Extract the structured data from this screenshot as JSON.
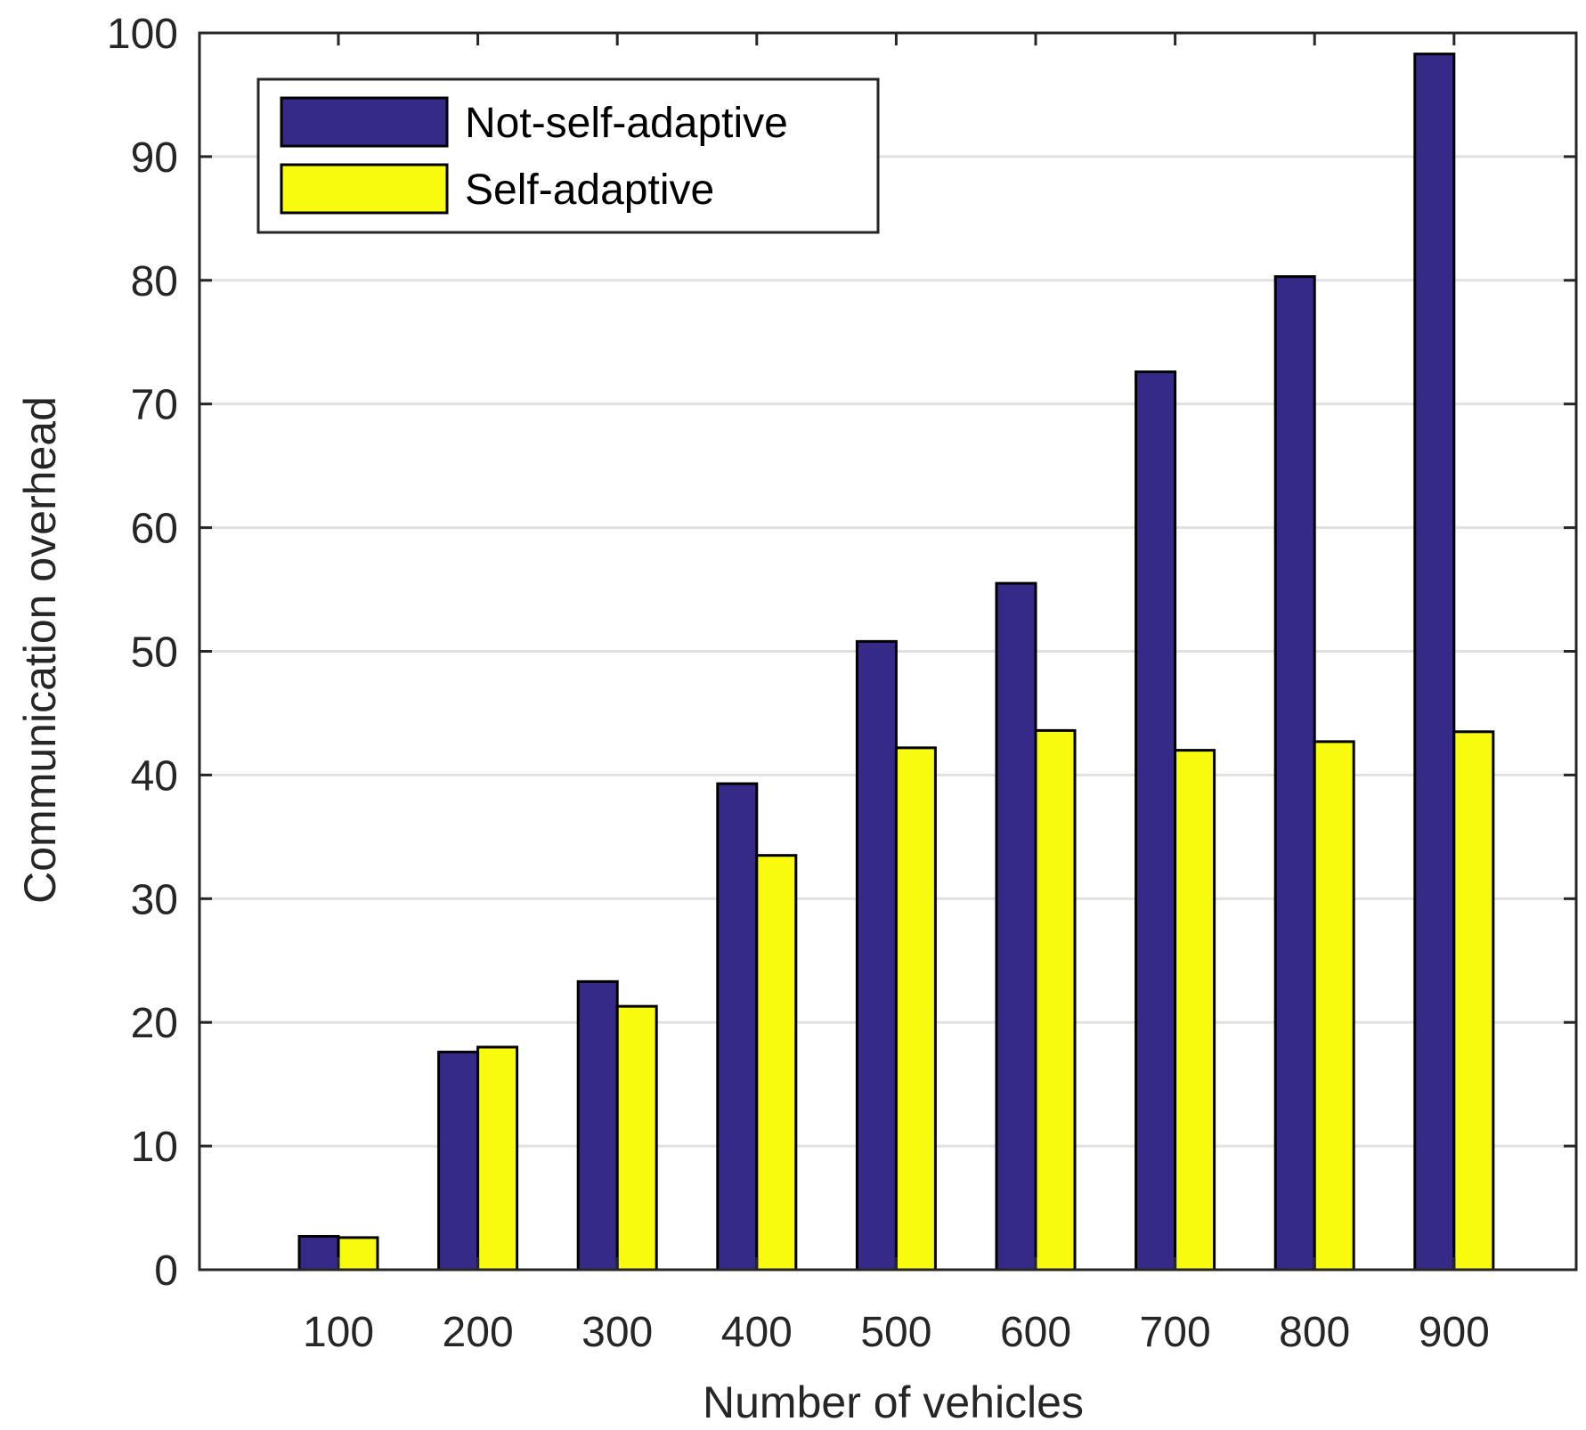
{
  "chart_data": {
    "type": "bar",
    "categories": [
      "100",
      "200",
      "300",
      "400",
      "500",
      "600",
      "700",
      "800",
      "900"
    ],
    "series": [
      {
        "name": "Not-self-adaptive",
        "color": "#352a87",
        "values": [
          2.7,
          17.6,
          23.3,
          39.3,
          50.8,
          55.5,
          72.6,
          80.3,
          98.3
        ]
      },
      {
        "name": "Self-adaptive",
        "color": "#f9fb0e",
        "values": [
          2.6,
          18.0,
          21.3,
          33.5,
          42.2,
          43.6,
          42.0,
          42.7,
          43.5
        ]
      }
    ],
    "xlabel": "Number of vehicles",
    "ylabel": "Communication overhead",
    "ylim": [
      0,
      100
    ],
    "yticks": [
      0,
      10,
      20,
      30,
      40,
      50,
      60,
      70,
      80,
      90,
      100
    ],
    "grid": "horizontal",
    "legend_position": "top-left"
  }
}
